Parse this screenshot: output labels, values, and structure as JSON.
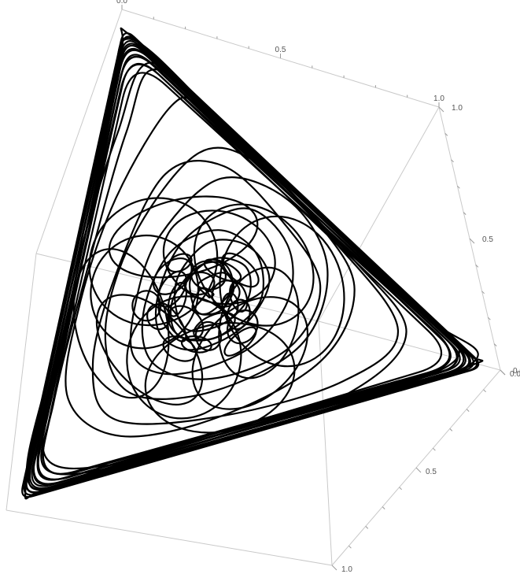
{
  "chart_data": {
    "type": "line",
    "title": "",
    "plot_kind": "3d-parametric-curve",
    "line_color": "#000000",
    "box_color": "#c9c9c9",
    "axes": {
      "axis1": {
        "range": [
          0,
          1
        ],
        "ticks": [
          "0.0",
          "0.5",
          "1.0"
        ]
      },
      "axis2": {
        "range": [
          0,
          1
        ],
        "ticks": [
          "1.0",
          "0.5",
          "0.0"
        ]
      },
      "axis3": {
        "range": [
          0,
          1
        ],
        "ticks": [
          "0.0",
          "0.5",
          "1.0"
        ]
      }
    },
    "series": [
      {
        "vertices": [
          [
            0,
            0,
            1
          ],
          [
            1,
            0,
            0
          ],
          [
            0,
            1,
            0
          ]
        ],
        "points": [
          [
            0.333,
            0.333,
            0.333
          ],
          [
            0.372,
            0.301,
            0.327
          ],
          [
            0.381,
            0.352,
            0.267
          ],
          [
            0.339,
            0.384,
            0.277
          ],
          [
            0.298,
            0.366,
            0.336
          ],
          [
            0.305,
            0.318,
            0.377
          ],
          [
            0.352,
            0.289,
            0.359
          ],
          [
            0.397,
            0.283,
            0.32
          ],
          [
            0.418,
            0.331,
            0.251
          ],
          [
            0.378,
            0.402,
            0.22
          ],
          [
            0.309,
            0.422,
            0.269
          ],
          [
            0.267,
            0.379,
            0.354
          ],
          [
            0.273,
            0.304,
            0.423
          ],
          [
            0.331,
            0.262,
            0.407
          ],
          [
            0.406,
            0.252,
            0.342
          ],
          [
            0.459,
            0.306,
            0.235
          ],
          [
            0.422,
            0.399,
            0.179
          ],
          [
            0.33,
            0.462,
            0.208
          ],
          [
            0.245,
            0.421,
            0.334
          ],
          [
            0.228,
            0.319,
            0.453
          ],
          [
            0.288,
            0.236,
            0.476
          ],
          [
            0.387,
            0.215,
            0.398
          ],
          [
            0.486,
            0.253,
            0.261
          ],
          [
            0.511,
            0.372,
            0.117
          ],
          [
            0.405,
            0.483,
            0.112
          ],
          [
            0.283,
            0.515,
            0.202
          ],
          [
            0.196,
            0.452,
            0.352
          ],
          [
            0.182,
            0.302,
            0.516
          ],
          [
            0.247,
            0.192,
            0.561
          ],
          [
            0.372,
            0.167,
            0.461
          ],
          [
            0.507,
            0.19,
            0.303
          ],
          [
            0.594,
            0.301,
            0.105
          ],
          [
            0.495,
            0.472,
            0.033
          ],
          [
            0.323,
            0.588,
            0.089
          ],
          [
            0.169,
            0.566,
            0.265
          ],
          [
            0.121,
            0.384,
            0.495
          ],
          [
            0.172,
            0.198,
            0.63
          ],
          [
            0.326,
            0.112,
            0.562
          ],
          [
            0.52,
            0.129,
            0.351
          ],
          [
            0.665,
            0.233,
            0.102
          ],
          [
            0.61,
            0.37,
            0.02
          ],
          [
            0.43,
            0.545,
            0.025
          ],
          [
            0.26,
            0.66,
            0.08
          ],
          [
            0.12,
            0.62,
            0.26
          ],
          [
            0.06,
            0.42,
            0.52
          ],
          [
            0.08,
            0.2,
            0.72
          ],
          [
            0.2,
            0.06,
            0.74
          ],
          [
            0.4,
            0.04,
            0.56
          ],
          [
            0.62,
            0.07,
            0.31
          ],
          [
            0.79,
            0.15,
            0.06
          ],
          [
            0.76,
            0.225,
            0.015
          ],
          [
            0.56,
            0.425,
            0.015
          ],
          [
            0.33,
            0.64,
            0.03
          ],
          [
            0.13,
            0.8,
            0.07
          ],
          [
            0.03,
            0.7,
            0.27
          ],
          [
            0.015,
            0.44,
            0.545
          ],
          [
            0.02,
            0.2,
            0.78
          ],
          [
            0.08,
            0.04,
            0.88
          ],
          [
            0.28,
            0.015,
            0.705
          ],
          [
            0.52,
            0.015,
            0.465
          ],
          [
            0.76,
            0.04,
            0.2
          ],
          [
            0.9,
            0.08,
            0.02
          ],
          [
            0.7,
            0.29,
            0.01
          ],
          [
            0.45,
            0.545,
            0.005
          ],
          [
            0.2,
            0.79,
            0.01
          ],
          [
            0.04,
            0.93,
            0.03
          ],
          [
            0.01,
            0.7,
            0.29
          ],
          [
            0.005,
            0.42,
            0.575
          ],
          [
            0.01,
            0.15,
            0.84
          ],
          [
            0.04,
            0.01,
            0.95
          ],
          [
            0.3,
            0.005,
            0.695
          ],
          [
            0.58,
            0.005,
            0.415
          ],
          [
            0.85,
            0.01,
            0.14
          ],
          [
            0.965,
            0.025,
            0.01
          ],
          [
            0.72,
            0.275,
            0.005
          ],
          [
            0.42,
            0.575,
            0.005
          ],
          [
            0.15,
            0.84,
            0.01
          ],
          [
            0.02,
            0.97,
            0.01
          ],
          [
            0.005,
            0.66,
            0.335
          ],
          [
            0.005,
            0.33,
            0.665
          ],
          [
            0.008,
            0.06,
            0.932
          ],
          [
            0.03,
            0.008,
            0.962
          ],
          [
            0.33,
            0.004,
            0.666
          ],
          [
            0.65,
            0.004,
            0.346
          ],
          [
            0.94,
            0.008,
            0.052
          ],
          [
            0.975,
            0.02,
            0.005
          ],
          [
            0.69,
            0.305,
            0.005
          ],
          [
            0.35,
            0.645,
            0.005
          ],
          [
            0.06,
            0.93,
            0.01
          ],
          [
            0.012,
            0.96,
            0.028
          ],
          [
            0.006,
            0.6,
            0.394
          ],
          [
            0.01,
            0.26,
            0.73
          ],
          [
            0.05,
            0.05,
            0.9
          ],
          [
            0.2,
            0.03,
            0.77
          ],
          [
            0.48,
            0.04,
            0.48
          ],
          [
            0.76,
            0.06,
            0.18
          ],
          [
            0.88,
            0.1,
            0.02
          ],
          [
            0.64,
            0.34,
            0.02
          ],
          [
            0.38,
            0.59,
            0.03
          ],
          [
            0.14,
            0.78,
            0.08
          ],
          [
            0.06,
            0.68,
            0.26
          ],
          [
            0.06,
            0.42,
            0.52
          ],
          [
            0.12,
            0.18,
            0.7
          ],
          [
            0.26,
            0.1,
            0.64
          ],
          [
            0.46,
            0.11,
            0.43
          ],
          [
            0.64,
            0.17,
            0.19
          ],
          [
            0.62,
            0.3,
            0.08
          ],
          [
            0.46,
            0.46,
            0.08
          ],
          [
            0.29,
            0.58,
            0.13
          ],
          [
            0.17,
            0.54,
            0.29
          ],
          [
            0.15,
            0.38,
            0.47
          ],
          [
            0.22,
            0.24,
            0.54
          ],
          [
            0.34,
            0.19,
            0.47
          ],
          [
            0.46,
            0.22,
            0.32
          ],
          [
            0.48,
            0.32,
            0.2
          ],
          [
            0.4,
            0.42,
            0.18
          ],
          [
            0.29,
            0.45,
            0.26
          ],
          [
            0.24,
            0.37,
            0.39
          ],
          [
            0.27,
            0.28,
            0.45
          ],
          [
            0.35,
            0.25,
            0.4
          ],
          [
            0.41,
            0.29,
            0.3
          ],
          [
            0.4,
            0.35,
            0.25
          ],
          [
            0.34,
            0.38,
            0.28
          ],
          [
            0.3,
            0.34,
            0.36
          ],
          [
            0.32,
            0.3,
            0.38
          ],
          [
            0.36,
            0.31,
            0.33
          ],
          [
            0.34,
            0.34,
            0.32
          ],
          [
            0.333,
            0.333,
            0.333
          ]
        ]
      }
    ]
  }
}
